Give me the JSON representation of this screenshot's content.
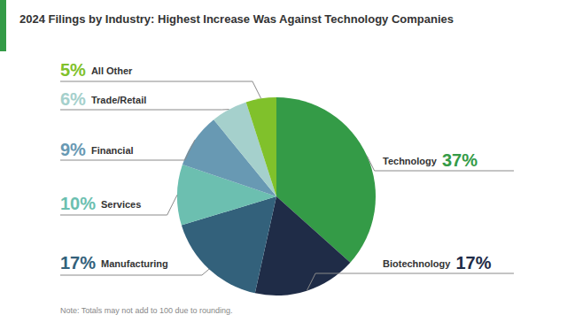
{
  "chart_data": {
    "type": "pie",
    "title": "2024 Filings by Industry: Highest Increase Was Against Technology Companies",
    "note": "Note: Totals may not add to 100 due to rounding.",
    "categories": [
      "Technology",
      "Biotechnology",
      "Manufacturing",
      "Services",
      "Financial",
      "Trade/Retail",
      "All Other"
    ],
    "values": [
      37,
      17,
      17,
      10,
      9,
      6,
      5
    ],
    "value_labels": [
      "37%",
      "17%",
      "17%",
      "10%",
      "9%",
      "6%",
      "5%"
    ],
    "colors": [
      "#349b47",
      "#1f2c47",
      "#33617b",
      "#6cbfb0",
      "#6899b3",
      "#a5d0cc",
      "#80c12b"
    ],
    "data_labels": true
  }
}
